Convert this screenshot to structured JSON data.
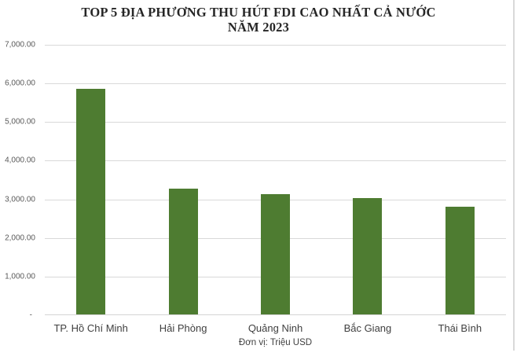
{
  "chart": {
    "title_line1": "TOP 5 ĐỊA PHƯƠNG THU HÚT FDI CAO NHẤT CẢ NƯỚC",
    "title_line2": "NĂM 2023",
    "unit_note": "Đơn vị: Triệu USD",
    "colors": {
      "bar": "#4e7c31",
      "gridline": "#d9d9d9",
      "title_text": "#262626",
      "tick_text": "#595959",
      "category_text": "#404040"
    }
  },
  "chart_data": {
    "type": "bar",
    "title": "TOP 5 ĐỊA PHƯƠNG THU HÚT FDI CAO NHẤT CẢ NƯỚC NĂM 2023",
    "categories": [
      "TP. Hồ Chí Minh",
      "Hải Phòng",
      "Quảng Ninh",
      "Bắc Giang",
      "Thái Bình"
    ],
    "values": [
      5850,
      3260,
      3110,
      3010,
      2790
    ],
    "xlabel": "",
    "ylabel": "",
    "unit_note": "Đơn vị: Triệu USD",
    "ylim": [
      0,
      7000
    ],
    "ytick_interval": 1000,
    "ytick_labels_bottom_to_top": [
      "-",
      "1,000.00",
      "2,000.00",
      "3,000.00",
      "4,000.00",
      "5,000.00",
      "6,000.00",
      "7,000.00"
    ],
    "grid": true,
    "legend": false,
    "bar_color": "#4e7c31"
  }
}
